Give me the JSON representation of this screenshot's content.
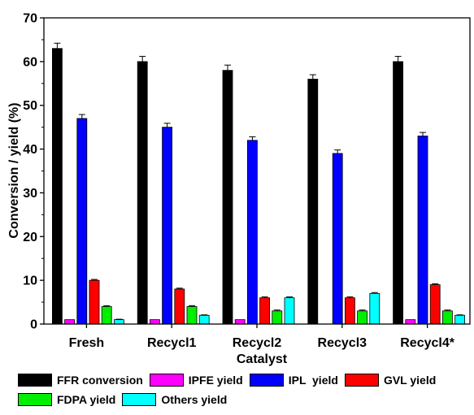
{
  "chart_data": {
    "type": "bar",
    "title": "",
    "xlabel": "Catalyst",
    "ylabel": "Conversion / yield (%)",
    "ylim": [
      0,
      70
    ],
    "yticks": [
      0,
      10,
      20,
      30,
      40,
      50,
      60,
      70
    ],
    "grid": false,
    "legend_position": "bottom",
    "categories": [
      "Fresh",
      "Recycl1",
      "Recycl2",
      "Recycl3",
      "Recycl4*"
    ],
    "series": [
      {
        "name": "FFR conversion",
        "color": "#000000",
        "values": [
          63,
          60,
          58,
          56,
          60
        ],
        "errors": [
          1.2,
          1.2,
          1.2,
          1.0,
          1.2
        ]
      },
      {
        "name": "IPFE yield",
        "color": "#ff00ff",
        "values": [
          1,
          1,
          1,
          0,
          1
        ],
        "errors": [
          0,
          0,
          0,
          0,
          0
        ]
      },
      {
        "name": "IPL  yield",
        "color": "#0000ff",
        "values": [
          47,
          45,
          42,
          39,
          43
        ],
        "errors": [
          0.9,
          0.9,
          0.8,
          0.8,
          0.8
        ]
      },
      {
        "name": "GVL yield",
        "color": "#ff0000",
        "values": [
          10,
          8,
          6,
          6,
          9
        ],
        "errors": [
          0.2,
          0.2,
          0.2,
          0.2,
          0.2
        ]
      },
      {
        "name": "FDPA yield",
        "color": "#00ee00",
        "values": [
          4,
          4,
          3,
          3,
          3
        ],
        "errors": [
          0.2,
          0.2,
          0.2,
          0.2,
          0.2
        ]
      },
      {
        "name": "Others yield",
        "color": "#00ffff",
        "values": [
          1,
          2,
          6,
          7,
          2
        ],
        "errors": [
          0.1,
          0.1,
          0.2,
          0.2,
          0.1
        ]
      }
    ]
  }
}
